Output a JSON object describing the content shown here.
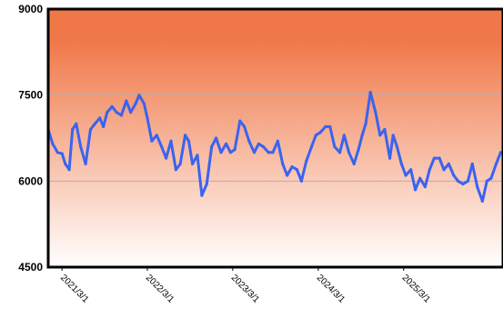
{
  "chart_data": {
    "type": "line",
    "title": "",
    "xlabel": "",
    "ylabel": "",
    "ylim": [
      4500,
      9000
    ],
    "xlim": [
      "2021-01-01",
      "2026-04-30"
    ],
    "y_ticks": [
      {
        "value": 4500,
        "label": "4500"
      },
      {
        "value": 6000,
        "label": "6000"
      },
      {
        "value": 7500,
        "label": "7500"
      },
      {
        "value": 9000,
        "label": "9000"
      }
    ],
    "x_ticks": [
      {
        "date": "2021-03-01",
        "label": "2021/3/1"
      },
      {
        "date": "2022-03-01",
        "label": "2022/3/1"
      },
      {
        "date": "2023-03-01",
        "label": "2023/3/1"
      },
      {
        "date": "2024-03-01",
        "label": "2024/3/1"
      },
      {
        "date": "2025-03-01",
        "label": "2025/3/1"
      }
    ],
    "grid": "horizontal",
    "colors": {
      "line": "#3a63f0",
      "background_top": "#f07848",
      "background_bottom": "#ffffff",
      "grid": "#b0b0b0",
      "frame": "#000000"
    },
    "series": [
      {
        "x": [
          "2021-01-01",
          "2021-01-20",
          "2021-02-10",
          "2021-03-01",
          "2021-03-15",
          "2021-04-01",
          "2021-04-15",
          "2021-05-01",
          "2021-05-20",
          "2021-06-10",
          "2021-07-01",
          "2021-07-20",
          "2021-08-10",
          "2021-08-25",
          "2021-09-10",
          "2021-10-01",
          "2021-10-20",
          "2021-11-10",
          "2021-12-01",
          "2021-12-20",
          "2022-01-10",
          "2022-01-25",
          "2022-02-15",
          "2022-03-01",
          "2022-03-20",
          "2022-04-10",
          "2022-05-01",
          "2022-05-20",
          "2022-06-10",
          "2022-07-01",
          "2022-07-20",
          "2022-08-10",
          "2022-08-25",
          "2022-09-10",
          "2022-10-01",
          "2022-10-20",
          "2022-11-10",
          "2022-12-01",
          "2022-12-20",
          "2023-01-10",
          "2023-02-01",
          "2023-02-20",
          "2023-03-10",
          "2023-04-01",
          "2023-04-20",
          "2023-05-10",
          "2023-06-01",
          "2023-06-20",
          "2023-07-10",
          "2023-08-01",
          "2023-08-20",
          "2023-09-10",
          "2023-10-01",
          "2023-10-20",
          "2023-11-10",
          "2023-12-01",
          "2023-12-20",
          "2024-01-10",
          "2024-02-01",
          "2024-02-20",
          "2024-03-10",
          "2024-04-01",
          "2024-04-20",
          "2024-05-10",
          "2024-06-01",
          "2024-06-20",
          "2024-07-10",
          "2024-08-01",
          "2024-08-20",
          "2024-09-05",
          "2024-09-20",
          "2024-10-10",
          "2024-11-01",
          "2024-11-20",
          "2024-12-10",
          "2025-01-01",
          "2025-01-15",
          "2025-02-01",
          "2025-02-20",
          "2025-03-10",
          "2025-04-01",
          "2025-04-20",
          "2025-05-10",
          "2025-06-01",
          "2025-06-20",
          "2025-07-10",
          "2025-08-01",
          "2025-08-20",
          "2025-09-10",
          "2025-10-01",
          "2025-10-20",
          "2025-11-10",
          "2025-12-01",
          "2025-12-20",
          "2026-01-10",
          "2026-02-01",
          "2026-02-20",
          "2026-03-10",
          "2026-04-01",
          "2026-04-20"
        ],
        "y": [
          6900,
          6650,
          6500,
          6480,
          6300,
          6200,
          6900,
          7000,
          6600,
          6300,
          6900,
          7000,
          7100,
          6950,
          7200,
          7300,
          7200,
          7150,
          7400,
          7200,
          7350,
          7500,
          7350,
          7100,
          6700,
          6800,
          6600,
          6400,
          6700,
          6200,
          6300,
          6800,
          6700,
          6300,
          6450,
          5750,
          5950,
          6600,
          6750,
          6500,
          6650,
          6500,
          6550,
          7050,
          6950,
          6700,
          6500,
          6650,
          6600,
          6500,
          6500,
          6700,
          6300,
          6100,
          6250,
          6200,
          6000,
          6350,
          6600,
          6800,
          6850,
          6950,
          6950,
          6600,
          6500,
          6800,
          6500,
          6300,
          6550,
          6800,
          7000,
          7550,
          7200,
          6800,
          6900,
          6400,
          6800,
          6600,
          6300,
          6100,
          6200,
          5850,
          6050,
          5900,
          6200,
          6400,
          6400,
          6200,
          6300,
          6100,
          6000,
          5950,
          6000,
          6300,
          5900,
          5650,
          6000,
          6050,
          6300,
          6500
        ]
      }
    ]
  }
}
